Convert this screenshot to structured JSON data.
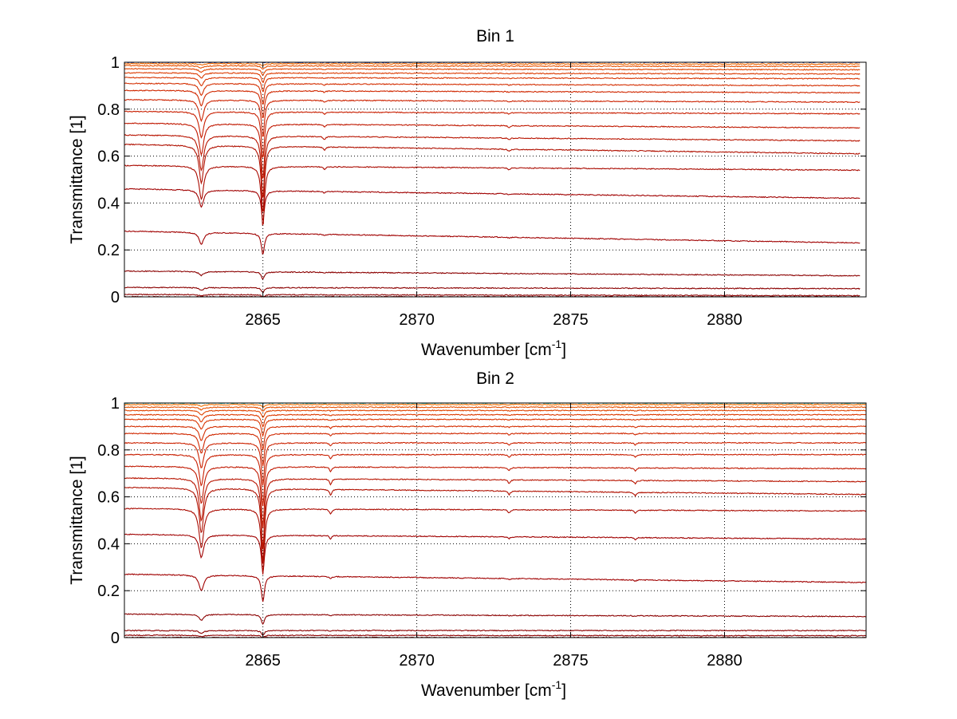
{
  "chart_data": [
    {
      "type": "line",
      "title": "Bin 1",
      "xlabel": "Wavenumber [cm",
      "xlabel_sup": "-1",
      "xlabel_end": "]",
      "ylabel": "Transmittance [1]",
      "xlim": [
        2860.5,
        2884.6
      ],
      "ylim": [
        0,
        1
      ],
      "xticks": [
        2865,
        2870,
        2875,
        2880
      ],
      "xtick_labels": [
        "2865",
        "2870",
        "2875",
        "2880"
      ],
      "yticks": [
        0,
        0.2,
        0.4,
        0.6,
        0.8,
        1
      ],
      "ytick_labels": [
        "0",
        "0.2",
        "0.4",
        "0.6",
        "0.8",
        "1"
      ],
      "grid": true,
      "x_start": 2860.5,
      "x_end": 2884.4,
      "absorption_lines": [
        {
          "x": 2863.0,
          "width": 0.09,
          "depth_factor": 0.55
        },
        {
          "x": 2865.0,
          "width": 0.06,
          "depth_factor": 1.0
        },
        {
          "x": 2867.0,
          "width": 0.04,
          "depth_factor": 0.05
        },
        {
          "x": 2873.0,
          "width": 0.04,
          "depth_factor": 0.03
        }
      ],
      "series": [
        {
          "baseline_start": 0.0,
          "baseline_end": 0.0,
          "depth": 0.0,
          "color": "#8b0000"
        },
        {
          "baseline_start": 0.01,
          "baseline_end": 0.005,
          "depth": 0.01,
          "color": "#8b0000"
        },
        {
          "baseline_start": 0.04,
          "baseline_end": 0.035,
          "depth": 0.02,
          "color": "#8b0000"
        },
        {
          "baseline_start": 0.11,
          "baseline_end": 0.09,
          "depth": 0.03,
          "color": "#8b0000"
        },
        {
          "baseline_start": 0.28,
          "baseline_end": 0.23,
          "depth": 0.09,
          "color": "#a00000"
        },
        {
          "baseline_start": 0.46,
          "baseline_end": 0.42,
          "depth": 0.13,
          "color": "#a00000"
        },
        {
          "baseline_start": 0.56,
          "baseline_end": 0.54,
          "depth": 0.26,
          "color": "#aa0a00"
        },
        {
          "baseline_start": 0.65,
          "baseline_end": 0.61,
          "depth": 0.29,
          "color": "#b01000"
        },
        {
          "baseline_start": 0.69,
          "baseline_end": 0.665,
          "depth": 0.27,
          "color": "#b81400"
        },
        {
          "baseline_start": 0.74,
          "baseline_end": 0.72,
          "depth": 0.24,
          "color": "#c01800"
        },
        {
          "baseline_start": 0.79,
          "baseline_end": 0.78,
          "depth": 0.2,
          "color": "#c81e00"
        },
        {
          "baseline_start": 0.84,
          "baseline_end": 0.83,
          "depth": 0.16,
          "color": "#cc2200"
        },
        {
          "baseline_start": 0.88,
          "baseline_end": 0.87,
          "depth": 0.12,
          "color": "#d02800"
        },
        {
          "baseline_start": 0.91,
          "baseline_end": 0.9,
          "depth": 0.09,
          "color": "#d42e00"
        },
        {
          "baseline_start": 0.935,
          "baseline_end": 0.93,
          "depth": 0.06,
          "color": "#d83400"
        },
        {
          "baseline_start": 0.955,
          "baseline_end": 0.95,
          "depth": 0.04,
          "color": "#dc3a00"
        },
        {
          "baseline_start": 0.972,
          "baseline_end": 0.968,
          "depth": 0.025,
          "color": "#e04400"
        },
        {
          "baseline_start": 0.985,
          "baseline_end": 0.982,
          "depth": 0.015,
          "color": "#e65000"
        },
        {
          "baseline_start": 0.994,
          "baseline_end": 0.992,
          "depth": 0.008,
          "color": "#f06800"
        },
        {
          "baseline_start": 1.0,
          "baseline_end": 1.0,
          "depth": 0.0,
          "color": "#1e40c8"
        }
      ]
    },
    {
      "type": "line",
      "title": "Bin 2",
      "xlabel": "Wavenumber [cm",
      "xlabel_sup": "-1",
      "xlabel_end": "]",
      "ylabel": "Transmittance [1]",
      "xlim": [
        2860.5,
        2884.6
      ],
      "ylim": [
        0,
        1
      ],
      "xticks": [
        2865,
        2870,
        2875,
        2880
      ],
      "xtick_labels": [
        "2865",
        "2870",
        "2875",
        "2880"
      ],
      "yticks": [
        0,
        0.2,
        0.4,
        0.6,
        0.8,
        1
      ],
      "ytick_labels": [
        "0",
        "0.2",
        "0.4",
        "0.6",
        "0.8",
        "1"
      ],
      "grid": true,
      "x_start": 2860.5,
      "x_end": 2884.6,
      "absorption_lines": [
        {
          "x": 2863.0,
          "width": 0.09,
          "depth_factor": 0.6
        },
        {
          "x": 2865.0,
          "width": 0.06,
          "depth_factor": 1.0
        },
        {
          "x": 2867.2,
          "width": 0.04,
          "depth_factor": 0.08
        },
        {
          "x": 2873.0,
          "width": 0.04,
          "depth_factor": 0.05
        },
        {
          "x": 2877.1,
          "width": 0.04,
          "depth_factor": 0.05
        }
      ],
      "series": [
        {
          "baseline_start": 0.0,
          "baseline_end": 0.0,
          "depth": 0.0,
          "color": "#8b0000"
        },
        {
          "baseline_start": 0.01,
          "baseline_end": 0.008,
          "depth": 0.01,
          "color": "#8b0000"
        },
        {
          "baseline_start": 0.03,
          "baseline_end": 0.03,
          "depth": 0.02,
          "color": "#8b0000"
        },
        {
          "baseline_start": 0.1,
          "baseline_end": 0.09,
          "depth": 0.04,
          "color": "#8b0000"
        },
        {
          "baseline_start": 0.27,
          "baseline_end": 0.235,
          "depth": 0.11,
          "color": "#a00000"
        },
        {
          "baseline_start": 0.44,
          "baseline_end": 0.42,
          "depth": 0.16,
          "color": "#a00000"
        },
        {
          "baseline_start": 0.55,
          "baseline_end": 0.54,
          "depth": 0.28,
          "color": "#aa0a00"
        },
        {
          "baseline_start": 0.64,
          "baseline_end": 0.61,
          "depth": 0.32,
          "color": "#b01000"
        },
        {
          "baseline_start": 0.68,
          "baseline_end": 0.665,
          "depth": 0.3,
          "color": "#b81400"
        },
        {
          "baseline_start": 0.73,
          "baseline_end": 0.72,
          "depth": 0.26,
          "color": "#c01800"
        },
        {
          "baseline_start": 0.78,
          "baseline_end": 0.78,
          "depth": 0.22,
          "color": "#c81e00"
        },
        {
          "baseline_start": 0.83,
          "baseline_end": 0.83,
          "depth": 0.18,
          "color": "#cc2200"
        },
        {
          "baseline_start": 0.87,
          "baseline_end": 0.87,
          "depth": 0.14,
          "color": "#d02800"
        },
        {
          "baseline_start": 0.9,
          "baseline_end": 0.9,
          "depth": 0.1,
          "color": "#d42e00"
        },
        {
          "baseline_start": 0.93,
          "baseline_end": 0.93,
          "depth": 0.07,
          "color": "#d83400"
        },
        {
          "baseline_start": 0.95,
          "baseline_end": 0.95,
          "depth": 0.05,
          "color": "#dc3a00"
        },
        {
          "baseline_start": 0.968,
          "baseline_end": 0.968,
          "depth": 0.03,
          "color": "#e04400"
        },
        {
          "baseline_start": 0.982,
          "baseline_end": 0.982,
          "depth": 0.018,
          "color": "#e65000"
        },
        {
          "baseline_start": 0.993,
          "baseline_end": 0.993,
          "depth": 0.01,
          "color": "#f07000"
        },
        {
          "baseline_start": 1.0,
          "baseline_end": 1.0,
          "depth": 0.0,
          "color": "#20c8c0"
        }
      ]
    }
  ]
}
